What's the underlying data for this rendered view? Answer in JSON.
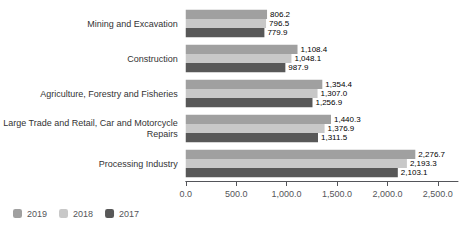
{
  "chart_data": {
    "type": "bar",
    "orientation": "horizontal",
    "categories": [
      "Mining and Excavation",
      "Construction",
      "Agriculture, Forestry and Fisheries",
      "Large Trade and Retail, Car and Motorcycle\nRepairs",
      "Processing Industry"
    ],
    "series": [
      {
        "name": "2019",
        "color": "#a0a0a0",
        "values": [
          806.2,
          1108.4,
          1354.4,
          1440.3,
          2276.7
        ],
        "value_labels": [
          "806.2",
          "1,108.4",
          "1,354.4",
          "1,440.3",
          "2,276.7"
        ]
      },
      {
        "name": "2018",
        "color": "#c8c8c8",
        "values": [
          796.5,
          1048.1,
          1307.0,
          1376.9,
          2193.3
        ],
        "value_labels": [
          "796.5",
          "1,048.1",
          "1,307.0",
          "1,376.9",
          "2,193.3"
        ]
      },
      {
        "name": "2017",
        "color": "#585858",
        "values": [
          779.9,
          987.9,
          1256.9,
          1311.5,
          2103.1
        ],
        "value_labels": [
          "779.9",
          "987.9",
          "1,256.9",
          "1,311.5",
          "2,103.1"
        ]
      }
    ],
    "xlim": [
      0,
      2700
    ],
    "xticks": [
      {
        "value": 0,
        "label": "0.0"
      },
      {
        "value": 500,
        "label": "500.0"
      },
      {
        "value": 1000,
        "label": "1,000.0"
      },
      {
        "value": 1500,
        "label": "1,500.0"
      },
      {
        "value": 2000,
        "label": "2,000.0"
      },
      {
        "value": 2500,
        "label": "2,500.0"
      }
    ],
    "data_labels": true,
    "grid": false,
    "legend": "lower left"
  }
}
